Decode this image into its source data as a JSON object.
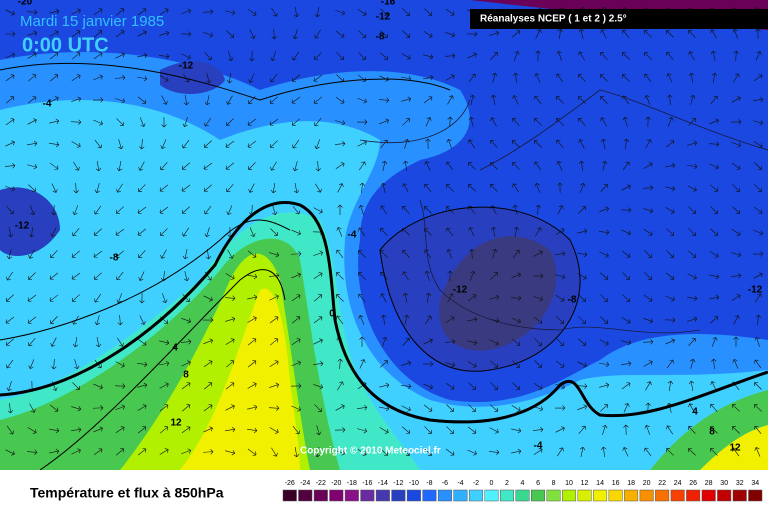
{
  "header": {
    "date": "Mardi 15 janvier 1985",
    "time": "0:00 UTC",
    "source": "Réanalyses NCEP ( 1 et 2 ) 2.5°"
  },
  "copyright": "Copyright © 2010 Meteociel.fr",
  "legend": {
    "title": "Température et flux à 850hPa",
    "scale": [
      -26,
      -24,
      -22,
      -20,
      -18,
      -16,
      -14,
      -12,
      -10,
      -8,
      -6,
      -4,
      -2,
      0,
      2,
      4,
      6,
      8,
      10,
      12,
      14,
      16,
      18,
      20,
      22,
      24,
      26,
      28,
      30,
      32,
      34
    ],
    "colors": [
      "#3a0028",
      "#520040",
      "#6a0058",
      "#800070",
      "#8a1088",
      "#6a2aa0",
      "#4838b0",
      "#2840c0",
      "#1a48e0",
      "#2068ff",
      "#2890ff",
      "#30b0ff",
      "#40d0ff",
      "#50f0ff",
      "#40e8c8",
      "#38d890",
      "#48c850",
      "#80e040",
      "#b0f000",
      "#d8f000",
      "#f0f000",
      "#f8d800",
      "#f8b000",
      "#f89000",
      "#f87000",
      "#f84000",
      "#f02000",
      "#e00000",
      "#c00000",
      "#a00000",
      "#800000"
    ]
  },
  "contour_labels": [
    -20,
    -16,
    -12,
    -8,
    -12,
    -4,
    -12,
    -8,
    -4,
    -12,
    -8,
    -12,
    0,
    4,
    8,
    12,
    4,
    8,
    12,
    -4
  ]
}
